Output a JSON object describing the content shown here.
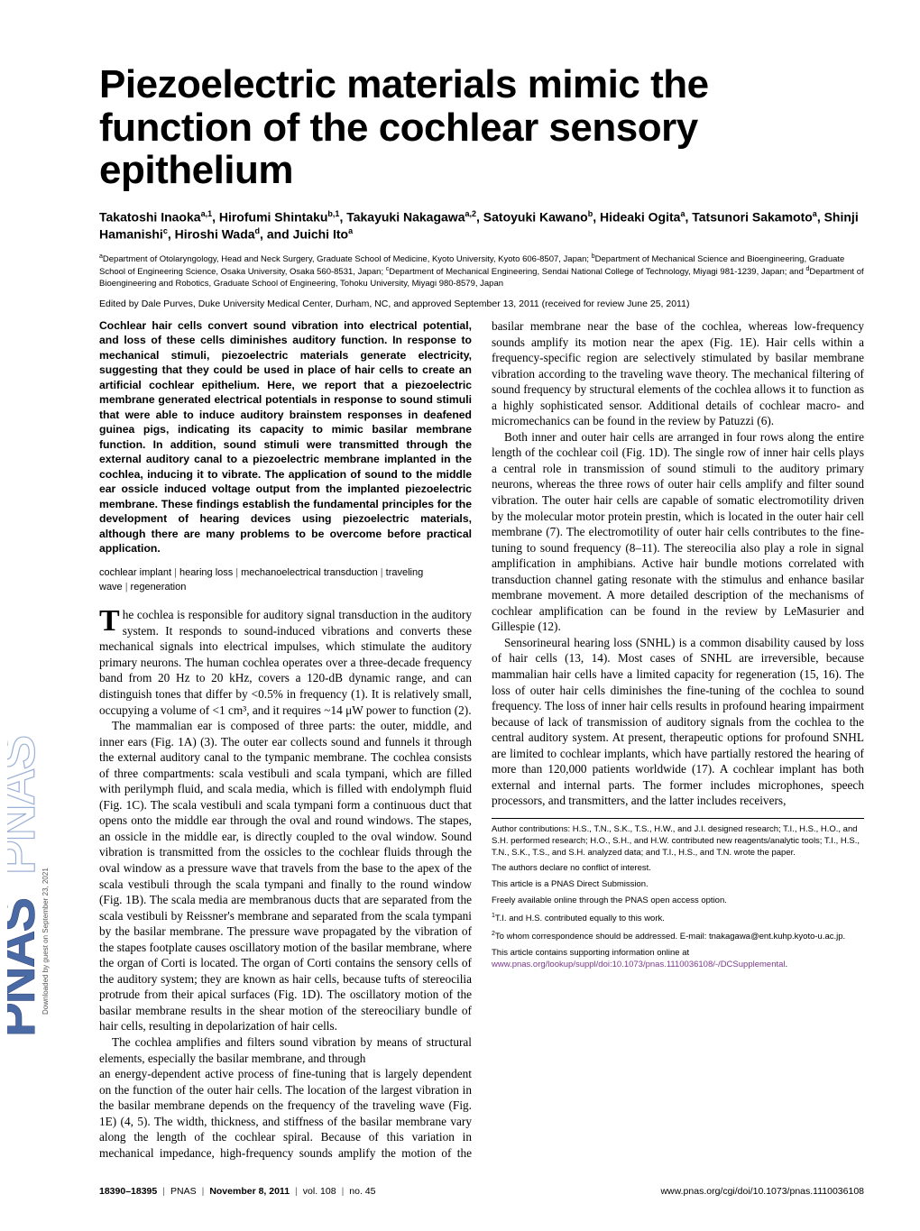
{
  "journal": {
    "logo_text": "PNAS PNAS",
    "logo_fill": "#4a6aa5",
    "logo_stroke": "#2a3a6a"
  },
  "download_note": "Downloaded by guest on September 23, 2021",
  "title": "Piezoelectric materials mimic the function of the cochlear sensory epithelium",
  "authors_html": "Takatoshi Inaoka<sup>a,1</sup>, Hirofumi Shintaku<sup>b,1</sup>, Takayuki Nakagawa<sup>a,2</sup>, Satoyuki Kawano<sup>b</sup>, Hideaki Ogita<sup>a</sup>, Tatsunori Sakamoto<sup>a</sup>, Shinji Hamanishi<sup>c</sup>, Hiroshi Wada<sup>d</sup>, and Juichi Ito<sup>a</sup>",
  "affiliations_html": "<sup>a</sup>Department of Otolaryngology, Head and Neck Surgery, Graduate School of Medicine, Kyoto University, Kyoto 606-8507, Japan; <sup>b</sup>Department of Mechanical Science and Bioengineering, Graduate School of Engineering Science, Osaka University, Osaka 560-8531, Japan; <sup>c</sup>Department of Mechanical Engineering, Sendai National College of Technology, Miyagi 981-1239, Japan; and <sup>d</sup>Department of Bioengineering and Robotics, Graduate School of Engineering, Tohoku University, Miyagi 980-8579, Japan",
  "edited_by": "Edited by Dale Purves, Duke University Medical Center, Durham, NC, and approved September 13, 2011 (received for review June 25, 2011)",
  "abstract": "Cochlear hair cells convert sound vibration into electrical potential, and loss of these cells diminishes auditory function. In response to mechanical stimuli, piezoelectric materials generate electricity, suggesting that they could be used in place of hair cells to create an artificial cochlear epithelium. Here, we report that a piezoelectric membrane generated electrical potentials in response to sound stimuli that were able to induce auditory brainstem responses in deafened guinea pigs, indicating its capacity to mimic basilar membrane function. In addition, sound stimuli were transmitted through the external auditory canal to a piezoelectric membrane implanted in the cochlea, inducing it to vibrate. The application of sound to the middle ear ossicle induced voltage output from the implanted piezoelectric membrane. These findings establish the fundamental principles for the development of hearing devices using piezoelectric materials, although there are many problems to be overcome before practical application.",
  "keywords": [
    "cochlear implant",
    "hearing loss",
    "mechanoelectrical transduction",
    "traveling wave",
    "regeneration"
  ],
  "body": {
    "p1": "he cochlea is responsible for auditory signal transduction in the auditory system. It responds to sound-induced vibrations and converts these mechanical signals into electrical impulses, which stimulate the auditory primary neurons. The human cochlea operates over a three-decade frequency band from 20 Hz to 20 kHz, covers a 120-dB dynamic range, and can distinguish tones that differ by <0.5% in frequency (1). It is relatively small, occupying a volume of <1 cm³, and it requires ~14 μW power to function (2).",
    "p2": "The mammalian ear is composed of three parts: the outer, middle, and inner ears (Fig. 1A) (3). The outer ear collects sound and funnels it through the external auditory canal to the tympanic membrane. The cochlea consists of three compartments: scala vestibuli and scala tympani, which are filled with perilymph fluid, and scala media, which is filled with endolymph fluid (Fig. 1C). The scala vestibuli and scala tympani form a continuous duct that opens onto the middle ear through the oval and round windows. The stapes, an ossicle in the middle ear, is directly coupled to the oval window. Sound vibration is transmitted from the ossicles to the cochlear fluids through the oval window as a pressure wave that travels from the base to the apex of the scala vestibuli through the scala tympani and finally to the round window (Fig. 1B). The scala media are membranous ducts that are separated from the scala vestibuli by Reissner's membrane and separated from the scala tympani by the basilar membrane. The pressure wave propagated by the vibration of the stapes footplate causes oscillatory motion of the basilar membrane, where the organ of Corti is located. The organ of Corti contains the sensory cells of the auditory system; they are known as hair cells, because tufts of stereocilia protrude from their apical surfaces (Fig. 1D). The oscillatory motion of the basilar membrane results in the shear motion of the stereociliary bundle of hair cells, resulting in depolarization of hair cells.",
    "p3": "The cochlea amplifies and filters sound vibration by means of structural elements, especially the basilar membrane, and through",
    "p4": "an energy-dependent active process of fine-tuning that is largely dependent on the function of the outer hair cells. The location of the largest vibration in the basilar membrane depends on the frequency of the traveling wave (Fig. 1E) (4, 5). The width, thickness, and stiffness of the basilar membrane vary along the length of the cochlear spiral. Because of this variation in mechanical impedance, high-frequency sounds amplify the motion of the basilar membrane near the base of the cochlea, whereas low-frequency sounds amplify its motion near the apex (Fig. 1E). Hair cells within a frequency-specific region are selectively stimulated by basilar membrane vibration according to the traveling wave theory. The mechanical filtering of sound frequency by structural elements of the cochlea allows it to function as a highly sophisticated sensor. Additional details of cochlear macro- and micromechanics can be found in the review by Patuzzi (6).",
    "p5": "Both inner and outer hair cells are arranged in four rows along the entire length of the cochlear coil (Fig. 1D). The single row of inner hair cells plays a central role in transmission of sound stimuli to the auditory primary neurons, whereas the three rows of outer hair cells amplify and filter sound vibration. The outer hair cells are capable of somatic electromotility driven by the molecular motor protein prestin, which is located in the outer hair cell membrane (7). The electromotility of outer hair cells contributes to the fine-tuning to sound frequency (8–11). The stereocilia also play a role in signal amplification in amphibians. Active hair bundle motions correlated with transduction channel gating resonate with the stimulus and enhance basilar membrane movement. A more detailed description of the mechanisms of cochlear amplification can be found in the review by LeMasurier and Gillespie (12).",
    "p6": "Sensorineural hearing loss (SNHL) is a common disability caused by loss of hair cells (13, 14). Most cases of SNHL are irreversible, because mammalian hair cells have a limited capacity for regeneration (15, 16). The loss of outer hair cells diminishes the fine-tuning of the cochlea to sound frequency. The loss of inner hair cells results in profound hearing impairment because of lack of transmission of auditory signals from the cochlea to the central auditory system. At present, therapeutic options for profound SNHL are limited to cochlear implants, which have partially restored the hearing of more than 120,000 patients worldwide (17). A cochlear implant has both external and internal parts. The former includes microphones, speech processors, and transmitters, and the latter includes receivers,"
  },
  "footnotes": {
    "contributions": "Author contributions: H.S., T.N., S.K., T.S., H.W., and J.I. designed research; T.I., H.S., H.O., and S.H. performed research; H.O., S.H., and H.W. contributed new reagents/analytic tools; T.I., H.S., T.N., S.K., T.S., and S.H. analyzed data; and T.I., H.S., and T.N. wrote the paper.",
    "conflict": "The authors declare no conflict of interest.",
    "submission": "This article is a PNAS Direct Submission.",
    "open_access": "Freely available online through the PNAS open access option.",
    "eq_contrib": "T.I. and H.S. contributed equally to this work.",
    "eq_contrib_sup": "1",
    "correspondence": "To whom correspondence should be addressed. E-mail: tnakagawa@ent.kuhp.kyoto-u.ac.jp.",
    "correspondence_sup": "2",
    "supp_prefix": "This article contains supporting information online at ",
    "supp_link": "www.pnas.org/lookup/suppl/doi:10.1073/pnas.1110036108/-/DCSupplemental",
    "supp_suffix": "."
  },
  "footer": {
    "pages": "18390–18395",
    "journal": "PNAS",
    "date": "November 8, 2011",
    "vol": "vol. 108",
    "no": "no. 45",
    "doi": "www.pnas.org/cgi/doi/10.1073/pnas.1110036108"
  },
  "link_color": "#7a3a8a"
}
